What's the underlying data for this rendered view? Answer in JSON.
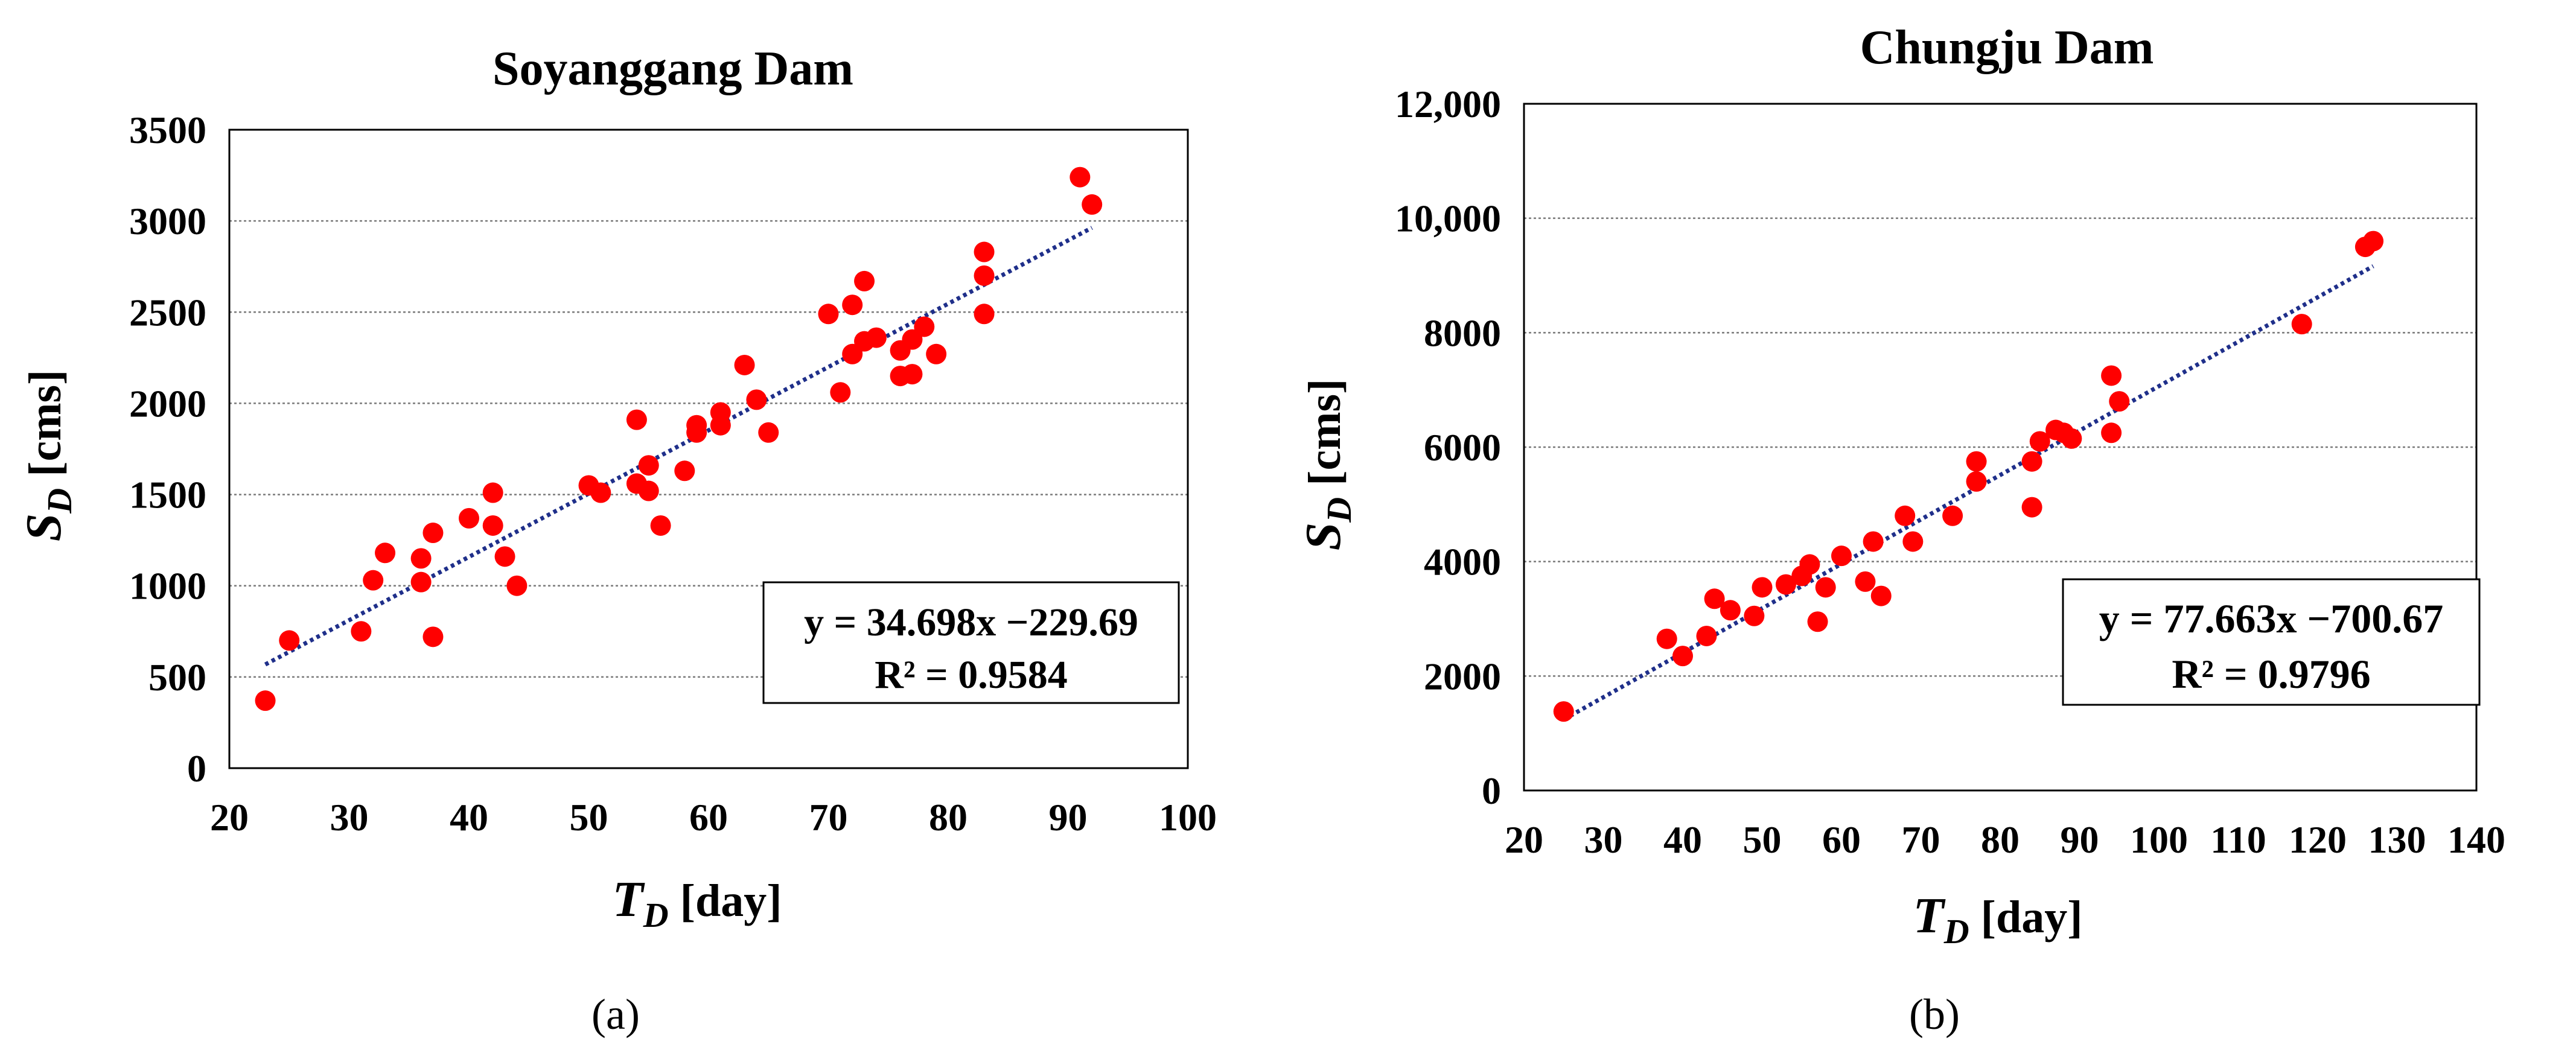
{
  "colors": {
    "point": "#ff0000",
    "trendline": "#1f2f8a",
    "gridline": "#7a7a7a",
    "axis": "#000000",
    "text": "#000000"
  },
  "chart_data": [
    {
      "type": "scatter",
      "panel_label": "(a)",
      "title": "Soyanggang Dam",
      "xlabel": "T_D [day]",
      "xlabel_main": "T",
      "xlabel_sub": "D",
      "xlabel_unit": " [day]",
      "ylabel": "S_D [cms]",
      "ylabel_main": "S",
      "ylabel_sub": "D",
      "ylabel_unit": " [cms]",
      "xlim": [
        20,
        100
      ],
      "ylim": [
        0,
        3500
      ],
      "xticks": [
        20,
        30,
        40,
        50,
        60,
        70,
        80,
        90,
        100
      ],
      "yticks": [
        0,
        500,
        1000,
        1500,
        2000,
        2500,
        3000,
        3500
      ],
      "xtick_labels": [
        "20",
        "30",
        "40",
        "50",
        "60",
        "70",
        "80",
        "90",
        "100"
      ],
      "ytick_labels": [
        "0",
        "500",
        "1000",
        "1500",
        "2000",
        "2500",
        "3000",
        "3500"
      ],
      "gridlines": "horizontal",
      "trendline": {
        "slope": 34.698,
        "intercept": -229.69,
        "x_range": [
          23,
          92
        ]
      },
      "equation": "y = 34.698x −229.69",
      "r_squared": "R² = 0.9584",
      "equation_box_position": "bottom-right",
      "points": [
        [
          23,
          370
        ],
        [
          25,
          700
        ],
        [
          31,
          750
        ],
        [
          32,
          1030
        ],
        [
          33,
          1180
        ],
        [
          36,
          1150
        ],
        [
          36,
          1020
        ],
        [
          37,
          1290
        ],
        [
          37,
          720
        ],
        [
          40,
          1370
        ],
        [
          42,
          1510
        ],
        [
          42,
          1330
        ],
        [
          43,
          1160
        ],
        [
          44,
          1000
        ],
        [
          50,
          1550
        ],
        [
          51,
          1510
        ],
        [
          54,
          1910
        ],
        [
          54,
          1560
        ],
        [
          55,
          1660
        ],
        [
          55,
          1520
        ],
        [
          56,
          1330
        ],
        [
          58,
          1630
        ],
        [
          59,
          1880
        ],
        [
          59,
          1840
        ],
        [
          61,
          1950
        ],
        [
          61,
          1880
        ],
        [
          63,
          2210
        ],
        [
          64,
          2020
        ],
        [
          65,
          1840
        ],
        [
          70,
          2490
        ],
        [
          71,
          2060
        ],
        [
          72,
          2540
        ],
        [
          72,
          2270
        ],
        [
          73,
          2670
        ],
        [
          73,
          2340
        ],
        [
          74,
          2360
        ],
        [
          76,
          2290
        ],
        [
          76,
          2150
        ],
        [
          77,
          2350
        ],
        [
          77,
          2160
        ],
        [
          78,
          2420
        ],
        [
          79,
          2270
        ],
        [
          83,
          2830
        ],
        [
          83,
          2700
        ],
        [
          83,
          2490
        ],
        [
          91,
          3240
        ],
        [
          92,
          3090
        ]
      ]
    },
    {
      "type": "scatter",
      "panel_label": "(b)",
      "title": "Chungju Dam",
      "xlabel": "T_D [day]",
      "xlabel_main": "T",
      "xlabel_sub": "D",
      "xlabel_unit": " [day]",
      "ylabel": "S_D [cms]",
      "ylabel_main": "S",
      "ylabel_sub": "D",
      "ylabel_unit": " [cms]",
      "xlim": [
        20,
        140
      ],
      "ylim": [
        0,
        12000
      ],
      "xticks": [
        20,
        30,
        40,
        50,
        60,
        70,
        80,
        90,
        100,
        110,
        120,
        130,
        140
      ],
      "yticks": [
        0,
        2000,
        4000,
        6000,
        8000,
        10000,
        12000
      ],
      "xtick_labels": [
        "20",
        "30",
        "40",
        "50",
        "60",
        "70",
        "80",
        "90",
        "100",
        "110",
        "120",
        "130",
        "140"
      ],
      "ytick_labels": [
        "0",
        "2000",
        "4000",
        "6000",
        "8000",
        "10,000",
        "12,000"
      ],
      "gridlines": "horizontal",
      "trendline": {
        "slope": 77.663,
        "intercept": -700.67,
        "x_range": [
          25,
          127
        ]
      },
      "equation": "y = 77.663x −700.67",
      "r_squared": "R² = 0.9796",
      "equation_box_position": "bottom-right",
      "points": [
        [
          25,
          1380
        ],
        [
          38,
          2650
        ],
        [
          40,
          2350
        ],
        [
          43,
          2700
        ],
        [
          44,
          3350
        ],
        [
          46,
          3150
        ],
        [
          49,
          3050
        ],
        [
          50,
          3550
        ],
        [
          53,
          3600
        ],
        [
          55,
          3750
        ],
        [
          56,
          3950
        ],
        [
          57,
          2950
        ],
        [
          58,
          3550
        ],
        [
          60,
          4100
        ],
        [
          63,
          3650
        ],
        [
          64,
          4350
        ],
        [
          65,
          3400
        ],
        [
          68,
          4800
        ],
        [
          69,
          4350
        ],
        [
          74,
          4800
        ],
        [
          77,
          5750
        ],
        [
          77,
          5400
        ],
        [
          84,
          5750
        ],
        [
          84,
          4950
        ],
        [
          85,
          6100
        ],
        [
          87,
          6300
        ],
        [
          88,
          6250
        ],
        [
          89,
          6150
        ],
        [
          94,
          7250
        ],
        [
          94,
          6250
        ],
        [
          95,
          6800
        ],
        [
          118,
          8150
        ],
        [
          126,
          9500
        ],
        [
          127,
          9600
        ]
      ]
    }
  ]
}
